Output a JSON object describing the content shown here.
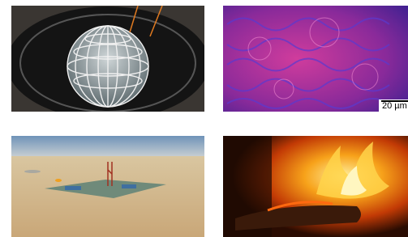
{
  "scale_bar": {
    "label": "20 µm"
  }
}
